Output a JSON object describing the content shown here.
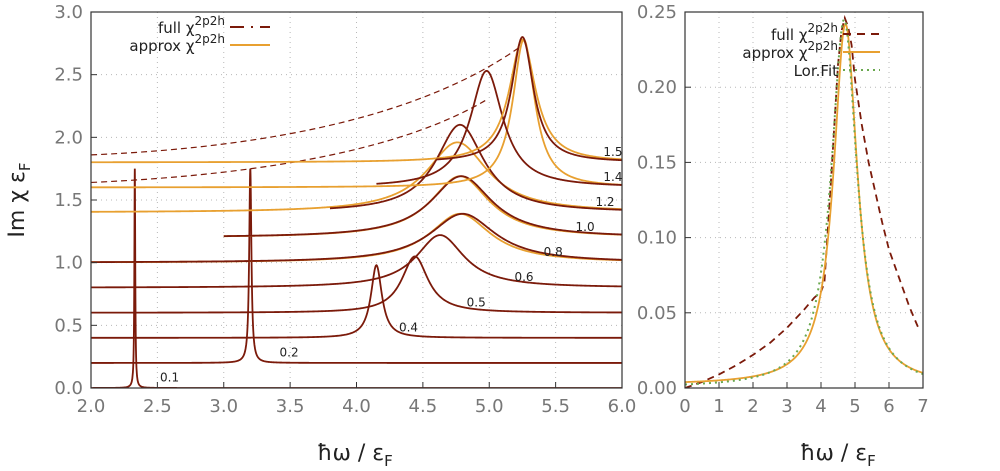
{
  "figure": {
    "ylabel": "Im χ ε",
    "ylabel_sub": "F",
    "xlabel": "ħω / ε",
    "xlabel_sub": "F"
  },
  "legend_left": {
    "full": {
      "text": "full χ",
      "sup": "2p2h"
    },
    "approx": {
      "text": "approx χ",
      "sup": "2p2h"
    }
  },
  "legend_right": {
    "full": {
      "text": "full χ",
      "sup": "2p2h"
    },
    "approx": {
      "text": "approx χ",
      "sup": "2p2h"
    },
    "lor": {
      "text": "Lor.Fit"
    }
  },
  "chart_data": [
    {
      "type": "line",
      "panel": "left",
      "xlim": [
        2.0,
        6.0
      ],
      "ylim": [
        0.0,
        3.0
      ],
      "xticks": [
        "2.0",
        "2.5",
        "3.0",
        "3.5",
        "4.0",
        "4.5",
        "5.0",
        "5.5",
        "6.0"
      ],
      "yticks": [
        "0.0",
        "0.5",
        "1.0",
        "1.5",
        "2.0",
        "2.5",
        "3.0"
      ],
      "grid": true,
      "colors": {
        "dark": "#7b1a0a",
        "light": "#e8a030"
      },
      "curves": [
        {
          "label": "0.1",
          "label_at": [
            2.52,
            0.02
          ],
          "base": 0.0,
          "dark": {
            "shape": "spike",
            "peak": 2.33,
            "height": 1.75,
            "width": 0.004
          }
        },
        {
          "label": "0.2",
          "label_at": [
            3.42,
            0.22
          ],
          "base": 0.2,
          "dark": {
            "shape": "spike",
            "peak": 3.2,
            "height": 1.75,
            "width": 0.01
          }
        },
        {
          "label": "0.4",
          "label_at": [
            4.32,
            0.42
          ],
          "base": 0.4,
          "dark": {
            "shape": "lorentz",
            "peak": 4.15,
            "height": 0.98,
            "width": 0.05
          }
        },
        {
          "label": "0.5",
          "label_at": [
            4.83,
            0.62
          ],
          "base": 0.6,
          "dark": {
            "shape": "lorentz",
            "peak": 4.44,
            "height": 1.05,
            "width": 0.12
          }
        },
        {
          "label": "0.6",
          "label_at": [
            5.19,
            0.82
          ],
          "base": 0.8,
          "dark": {
            "shape": "lorentz",
            "peak": 4.63,
            "height": 1.22,
            "width": 0.22
          }
        },
        {
          "label": "0.8",
          "label_at": [
            5.41,
            1.02
          ],
          "base": 1.0,
          "dark": {
            "shape": "lorentz",
            "peak": 4.8,
            "height": 1.39,
            "width": 0.3
          },
          "light": {
            "shape": "lorentz",
            "peak": 4.78,
            "height": 1.39,
            "width": 0.28
          }
        },
        {
          "label": "1.0",
          "label_at": [
            5.65,
            1.22
          ],
          "base": 1.2,
          "dark": {
            "shape": "lorentz",
            "peak": 4.79,
            "height": 1.69,
            "width": 0.28,
            "start": 3.0
          },
          "light": {
            "shape": "lorentz",
            "peak": 4.78,
            "height": 1.69,
            "width": 0.27,
            "start": 3.0
          }
        },
        {
          "label": "1.2",
          "label_at": [
            5.8,
            1.42
          ],
          "base": 1.4,
          "dark": {
            "shape": "lorentz",
            "peak": 4.78,
            "height": 2.1,
            "width": 0.22,
            "start": 3.8
          },
          "light": {
            "shape": "lorentz",
            "peak": 4.76,
            "height": 1.96,
            "width": 0.28,
            "start": 2.0
          }
        },
        {
          "label": "1.4",
          "label_at": [
            5.86,
            1.62
          ],
          "base": 1.6,
          "dark": {
            "shape": "lorentz",
            "peak": 4.98,
            "height": 2.53,
            "width": 0.15,
            "start": 4.15
          },
          "light": {
            "shape": "lorentz",
            "peak": 5.26,
            "height": 2.78,
            "width": 0.1,
            "start": 2.0
          },
          "dashed": {
            "from": [
              2.0,
              1.64
            ],
            "to": [
              4.98,
              2.3
            ]
          }
        },
        {
          "label": "1.5",
          "label_at": [
            5.86,
            1.82
          ],
          "base": 1.8,
          "dark": {
            "shape": "lorentz",
            "peak": 5.25,
            "height": 2.8,
            "width": 0.1,
            "start": 4.6
          },
          "light": {
            "shape": "lorentz",
            "peak": 5.25,
            "height": 2.78,
            "width": 0.12,
            "start": 2.0
          },
          "dashed": {
            "from": [
              2.0,
              1.86
            ],
            "to": [
              5.23,
              2.72
            ]
          }
        }
      ]
    },
    {
      "type": "line",
      "panel": "right",
      "xlim": [
        0,
        7
      ],
      "ylim": [
        0.0,
        0.25
      ],
      "xticks": [
        "0",
        "1",
        "2",
        "3",
        "4",
        "5",
        "6",
        "7"
      ],
      "yticks": [
        "0.00",
        "0.05",
        "0.10",
        "0.15",
        "0.20",
        "0.25"
      ],
      "grid": true,
      "series": [
        {
          "name": "full χ2p2h",
          "style": "dashed",
          "color": "#7b1a0a",
          "x": [
            0.0,
            0.5,
            1.0,
            1.5,
            2.0,
            2.5,
            3.0,
            3.5,
            3.8,
            4.0,
            4.1,
            4.3,
            4.5,
            4.6,
            4.7,
            4.8,
            4.9,
            5.0,
            5.2,
            5.4,
            5.6,
            5.8,
            6.0,
            6.3,
            6.6,
            6.9
          ],
          "y": [
            0.0,
            0.004,
            0.009,
            0.015,
            0.022,
            0.03,
            0.04,
            0.052,
            0.06,
            0.064,
            0.07,
            0.14,
            0.215,
            0.237,
            0.246,
            0.24,
            0.228,
            0.205,
            0.175,
            0.15,
            0.13,
            0.11,
            0.092,
            0.073,
            0.054,
            0.038
          ]
        },
        {
          "name": "approx χ2p2h",
          "style": "solid",
          "color": "#e8a030",
          "lorentz": {
            "x0": 4.72,
            "peak": 0.24,
            "gamma": 0.85,
            "offset": 0.002
          }
        },
        {
          "name": "Lor.Fit",
          "style": "dotted",
          "color": "#6aa84f",
          "lorentz": {
            "x0": 4.68,
            "peak": 0.245,
            "gamma": 0.92,
            "offset": 0.0
          }
        }
      ]
    }
  ]
}
